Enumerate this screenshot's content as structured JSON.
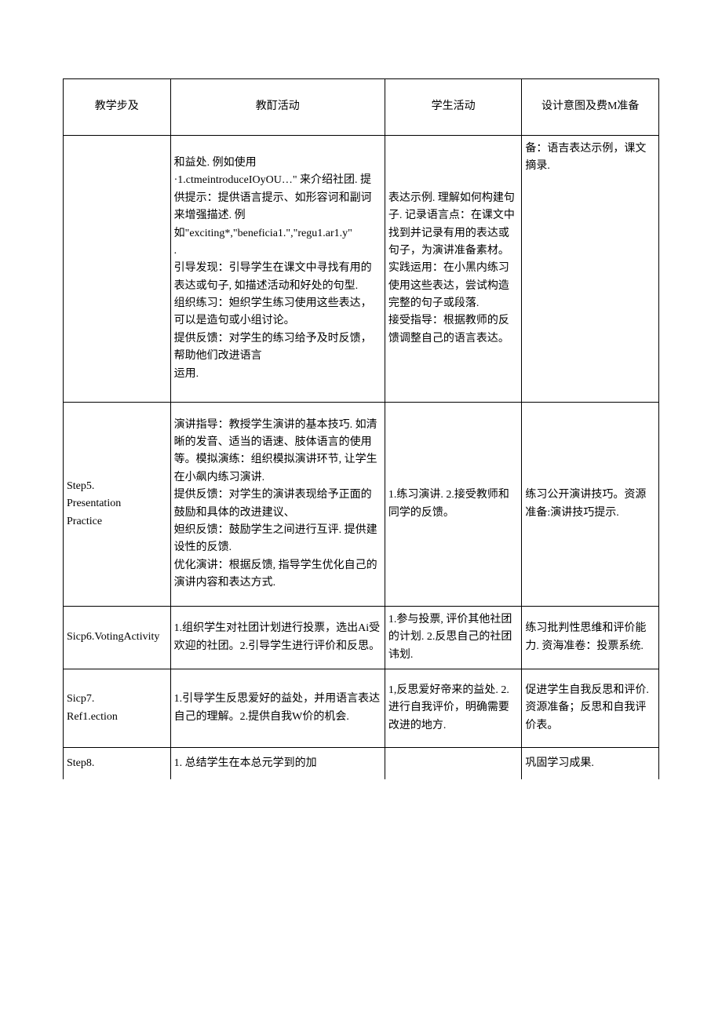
{
  "headers": {
    "c1": "教学步及",
    "c2": "教酊活动",
    "c3": "学生活动",
    "c4": "设计意图及费M准备"
  },
  "rows": [
    {
      "c1": "",
      "c2": "和益处. 例如使用\n·1.ctmeintroduceIOyOU…\" 来介绍社团. 提供提示：提供语言提示、如形容诃和副诃来增强描述. 例如\"exciting*,\"beneficia1.\",\"regu1.ar1.y\"\n.\n引导发现：引导学生在课文中寻找有用的表达或句子, 如描述活动和好处的句型.\n组织练习：妲织学生练习使用这些表达，可以是造句或小组讨论。\n提供反馈：对学生的练习给予及时反馈，帮助他们改进语言\n运用.",
      "c3": "表达示例. 理解如何构建句子. 记录语言点：在课文中找到并记录有用的表达或句子，为演讲准备素材。\n实践运用：在小黑内练习使用这些表达，尝试构造完整的句子或段落.\n接受指导：根据教师的反馈调整自己的语言表达。",
      "c4": "备：语吉表达示例，课文摘录.",
      "cls": "row-tall",
      "c4_valign": "top"
    },
    {
      "c1": "Step5.\nPresentation\nPractice",
      "c2": "演讲指导：教授学生演讲的基本技巧. 如清晰的发音、适当的语速、肢体语言的使用等。模拟演练：组织模拟演讲环节, 让学生在小飙内练习演讲.\n提供反馈：对学生的演讲表现给予正面的鼓励和具体的改进建议、\n妲织反馈：鼓励学生之间进行互评. 提供建设性的反馈.\n优化演讲：根据反馈, 指导学生优化自己的演讲内容和表达方式.",
      "c3": "1.练习演讲. 2.接受教师和同学的反馈。",
      "c4": "练习公开演讲技巧。资源准备:演讲技巧提示.",
      "cls": "row-med"
    },
    {
      "c1": "Sicp6.VotingActivity",
      "c2": "1.组织学生对社团计划进行投票，选出Ai受欢迎的社团。2.引导学生进行评价和反思。",
      "c3": "1.参与投票, 评价其他社团的计划. 2.反思自己的社团讳划.",
      "c4": "练习批判性思维和评价能力. 资海准卷：投票系统.",
      "cls": "row-small"
    },
    {
      "c1": "Sicp7.\nRef1.ection",
      "c2": "1.引导学生反思爱好的益处，并用语言表达自己的理解。2.提供自我W价的机会.",
      "c3": "1,反思爱好帝来的益处. 2.进行自我评价，明确需要改进的地方.",
      "c4": "促进学生自我反思和评价. 资源准备；反思和自我评价表。",
      "cls": "row-small2"
    },
    {
      "c1": "Step8.",
      "c2": "1. 总结学生在本总元学到的加",
      "c3": "",
      "c4": "巩固学习成果.",
      "cls": "row-last"
    }
  ]
}
